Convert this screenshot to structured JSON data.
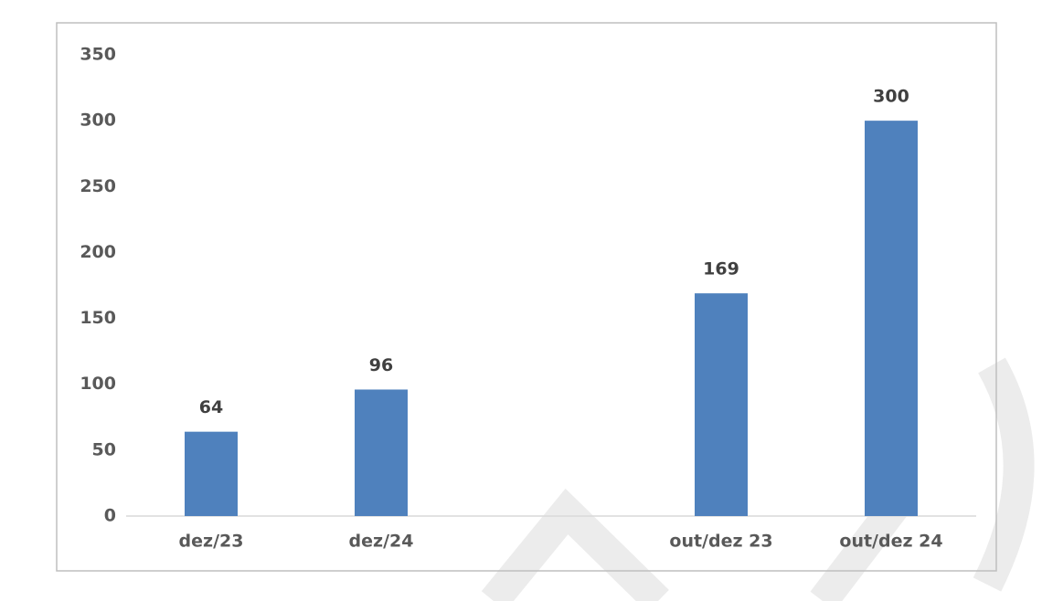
{
  "chart_data": {
    "type": "bar",
    "categories": [
      "dez/23",
      "dez/24",
      null,
      "out/dez 23",
      "out/dez 24"
    ],
    "values": [
      64,
      96,
      null,
      169,
      300
    ],
    "color": "#4f81bd",
    "ylim": [
      0,
      350
    ],
    "yticks": [
      0,
      50,
      100,
      150,
      200,
      250,
      300,
      350
    ],
    "grid": false,
    "data_labels": true
  }
}
